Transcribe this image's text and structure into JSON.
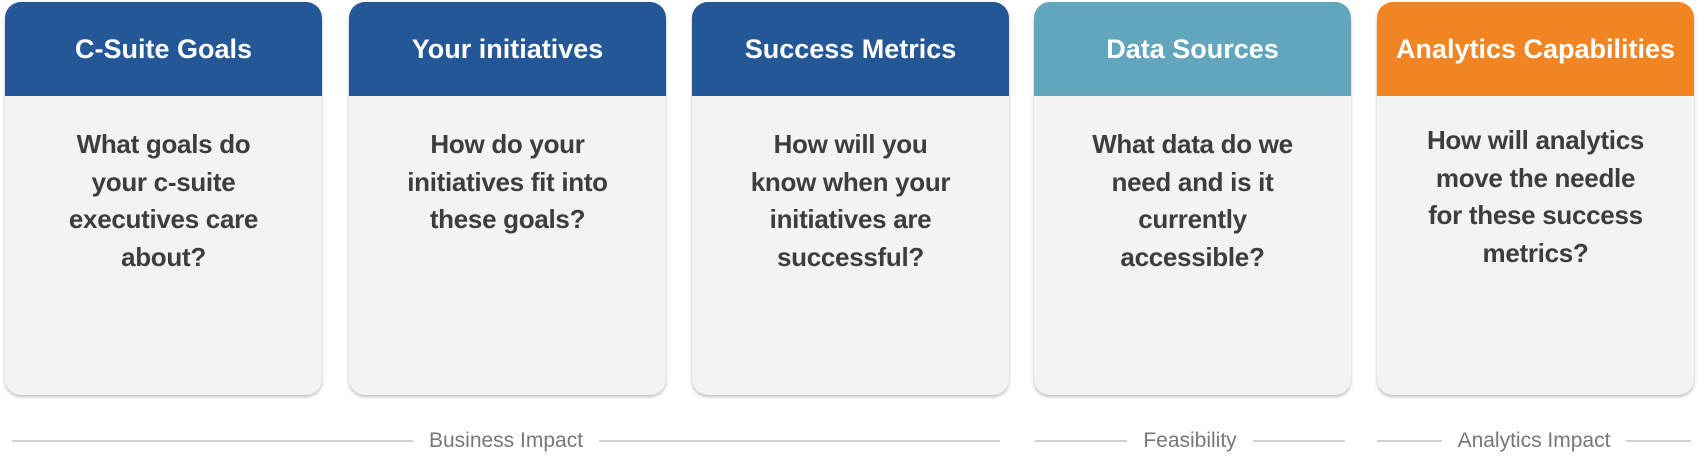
{
  "colors": {
    "dark_blue": "#245796",
    "teal": "#62a6bd",
    "orange": "#f28523",
    "card_bg": "#f3f3f3",
    "body_text": "#3d3d3d"
  },
  "cards": [
    {
      "title": "C-Suite Goals",
      "color": "#245796",
      "question": [
        "What goals do",
        "your c-suite",
        "executives care",
        "about?"
      ]
    },
    {
      "title": "Your initiatives",
      "color": "#245796",
      "question": [
        "How do your",
        "initiatives fit into",
        "these goals?"
      ]
    },
    {
      "title": "Success Metrics",
      "color": "#245796",
      "question": [
        "How will you",
        "know when your",
        "initiatives are",
        "successful?"
      ]
    },
    {
      "title": "Data Sources",
      "color": "#62a6bd",
      "question": [
        "What data do we",
        "need and is it",
        "currently",
        "accessible?"
      ]
    },
    {
      "title": "Analytics Capabilities",
      "color": "#f28523",
      "question": [
        "How will analytics",
        "move the needle",
        "for these success",
        "metrics?"
      ]
    }
  ],
  "groups": [
    {
      "label": "Business Impact"
    },
    {
      "label": "Feasibility"
    },
    {
      "label": "Analytics Impact"
    }
  ]
}
